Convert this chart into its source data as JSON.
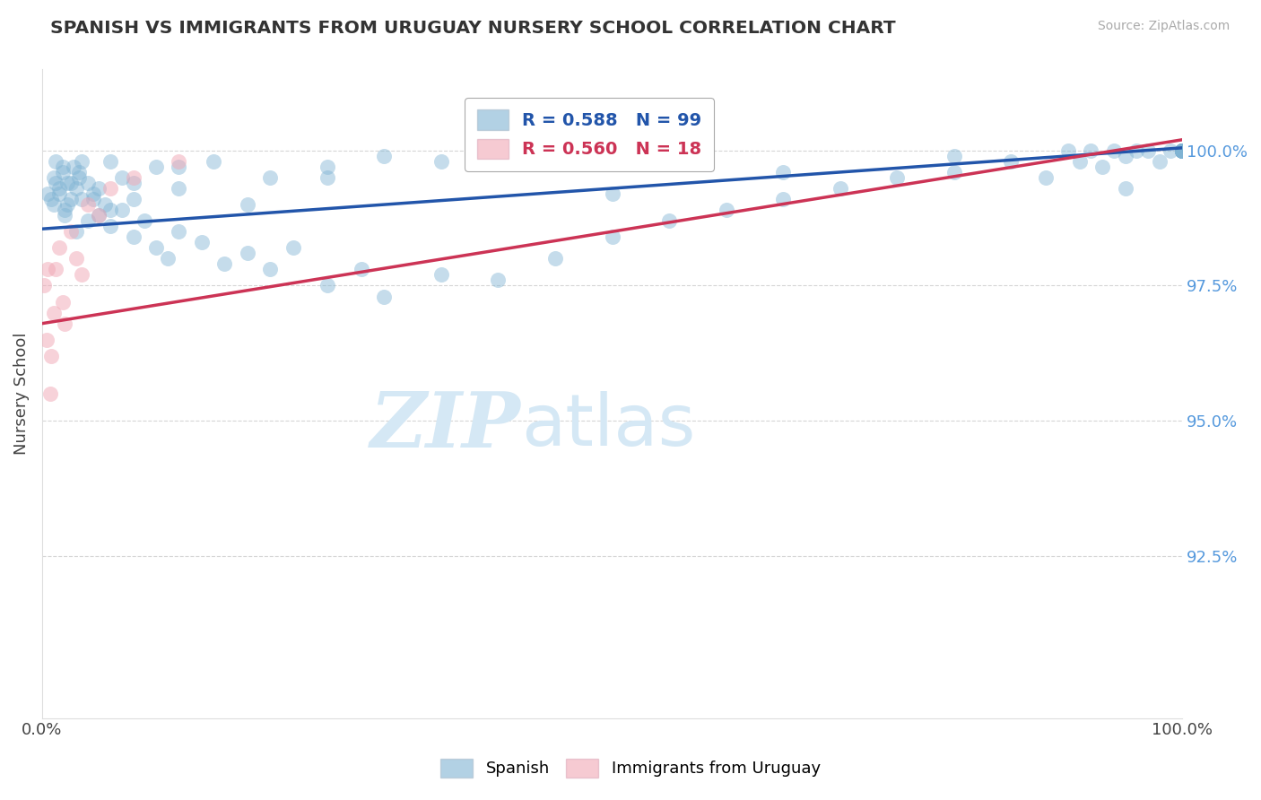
{
  "title": "SPANISH VS IMMIGRANTS FROM URUGUAY NURSERY SCHOOL CORRELATION CHART",
  "source": "Source: ZipAtlas.com",
  "ylabel": "Nursery School",
  "xlim": [
    0.0,
    100.0
  ],
  "ylim": [
    89.5,
    101.5
  ],
  "blue_color": "#7fb3d3",
  "pink_color": "#f1a7b5",
  "blue_line_color": "#2255aa",
  "pink_line_color": "#cc3355",
  "legend_R_blue": "R = 0.588",
  "legend_N_blue": "N = 99",
  "legend_R_pink": "R = 0.560",
  "legend_N_pink": "N = 18",
  "ytick_vals": [
    92.5,
    95.0,
    97.5,
    100.0
  ],
  "ytick_labels": [
    "92.5%",
    "95.0%",
    "97.5%",
    "100.0%"
  ],
  "xtick_vals": [
    0,
    100
  ],
  "xtick_labels": [
    "0.0%",
    "100.0%"
  ],
  "grid_color": "#cccccc",
  "background_color": "#ffffff",
  "watermark_color": "#d5e8f5",
  "blue_scatter_x": [
    0.5,
    1.0,
    1.2,
    1.5,
    1.8,
    2.0,
    2.2,
    2.5,
    2.8,
    3.0,
    3.2,
    3.5,
    4.0,
    4.5,
    5.0,
    5.5,
    6.0,
    7.0,
    8.0,
    9.0,
    10.0,
    11.0,
    12.0,
    14.0,
    16.0,
    18.0,
    20.0,
    22.0,
    25.0,
    28.0,
    30.0,
    35.0,
    40.0,
    45.0,
    50.0,
    55.0,
    60.0,
    65.0,
    70.0,
    75.0,
    80.0,
    85.0,
    88.0,
    90.0,
    91.0,
    92.0,
    93.0,
    94.0,
    95.0,
    96.0,
    97.0,
    98.0,
    99.0,
    100.0,
    100.0,
    100.0,
    100.0,
    100.0,
    100.0,
    100.0,
    100.0,
    100.0,
    100.0,
    100.0,
    100.0,
    1.0,
    1.5,
    2.0,
    2.5,
    3.0,
    3.5,
    4.0,
    5.0,
    6.0,
    7.0,
    8.0,
    10.0,
    12.0,
    15.0,
    20.0,
    25.0,
    30.0,
    0.8,
    1.2,
    1.8,
    2.2,
    3.2,
    4.5,
    6.0,
    8.0,
    12.0,
    18.0,
    25.0,
    35.0,
    50.0,
    65.0,
    80.0,
    95.0,
    100.0
  ],
  "blue_scatter_y": [
    99.2,
    99.5,
    99.8,
    99.3,
    99.6,
    98.9,
    99.4,
    99.1,
    99.7,
    99.3,
    99.5,
    99.8,
    99.4,
    99.1,
    98.8,
    99.0,
    98.6,
    98.9,
    98.4,
    98.7,
    98.2,
    98.0,
    98.5,
    98.3,
    97.9,
    98.1,
    97.8,
    98.2,
    97.5,
    97.8,
    97.3,
    97.7,
    97.6,
    98.0,
    98.4,
    98.7,
    98.9,
    99.1,
    99.3,
    99.5,
    99.6,
    99.8,
    99.5,
    100.0,
    99.8,
    100.0,
    99.7,
    100.0,
    99.9,
    100.0,
    100.0,
    99.8,
    100.0,
    100.0,
    100.0,
    100.0,
    100.0,
    100.0,
    100.0,
    100.0,
    100.0,
    100.0,
    100.0,
    100.0,
    100.0,
    99.0,
    99.2,
    98.8,
    99.4,
    98.5,
    99.1,
    98.7,
    99.3,
    98.9,
    99.5,
    99.1,
    99.7,
    99.3,
    99.8,
    99.5,
    99.7,
    99.9,
    99.1,
    99.4,
    99.7,
    99.0,
    99.6,
    99.2,
    99.8,
    99.4,
    99.7,
    99.0,
    99.5,
    99.8,
    99.2,
    99.6,
    99.9,
    99.3,
    100.0
  ],
  "pink_scatter_x": [
    0.2,
    0.4,
    0.5,
    0.7,
    0.8,
    1.0,
    1.2,
    1.5,
    1.8,
    2.0,
    2.5,
    3.0,
    3.5,
    4.0,
    5.0,
    6.0,
    8.0,
    12.0
  ],
  "pink_scatter_y": [
    97.5,
    96.5,
    97.8,
    95.5,
    96.2,
    97.0,
    97.8,
    98.2,
    97.2,
    96.8,
    98.5,
    98.0,
    97.7,
    99.0,
    98.8,
    99.3,
    99.5,
    99.8
  ],
  "blue_line_x0": 0,
  "blue_line_x1": 100,
  "blue_line_y0": 98.55,
  "blue_line_y1": 100.05,
  "pink_line_x0": 0,
  "pink_line_x1": 100,
  "pink_line_y0": 96.8,
  "pink_line_y1": 100.2
}
